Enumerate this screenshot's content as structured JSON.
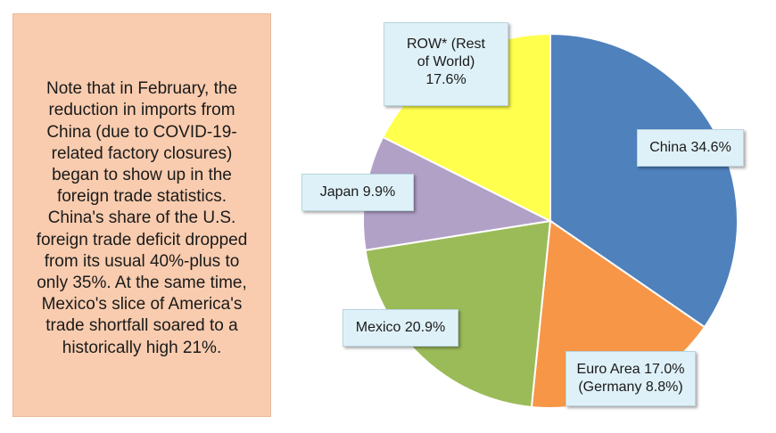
{
  "note": {
    "text": "Note that in February, the\nreduction in imports from\nChina (due to COVID-19-\nrelated factory closures)\nbegan to show up in the\nforeign trade statistics.\nChina's share of the U.S.\nforeign trade deficit dropped\nfrom its usual 40%-plus to\nonly 35%. At the same time,\nMexico's slice of America's\ntrade shortfall soared to a\nhistorically high 21%."
  },
  "chart_data": {
    "type": "pie",
    "title": "",
    "slices": [
      {
        "label": "China 34.6%",
        "value": 34.6,
        "color": "#4f81bd"
      },
      {
        "label": "Euro Area 17.0%\n(Germany 8.8%)",
        "value": 17.0,
        "color": "#f79646"
      },
      {
        "label": "Mexico 20.9%",
        "value": 20.9,
        "color": "#9bbb59"
      },
      {
        "label": "Japan 9.9%",
        "value": 9.9,
        "color": "#b2a1c7"
      },
      {
        "label": "ROW* (Rest\nof World)\n17.6%",
        "value": 17.6,
        "color": "#ffff4d"
      }
    ]
  }
}
